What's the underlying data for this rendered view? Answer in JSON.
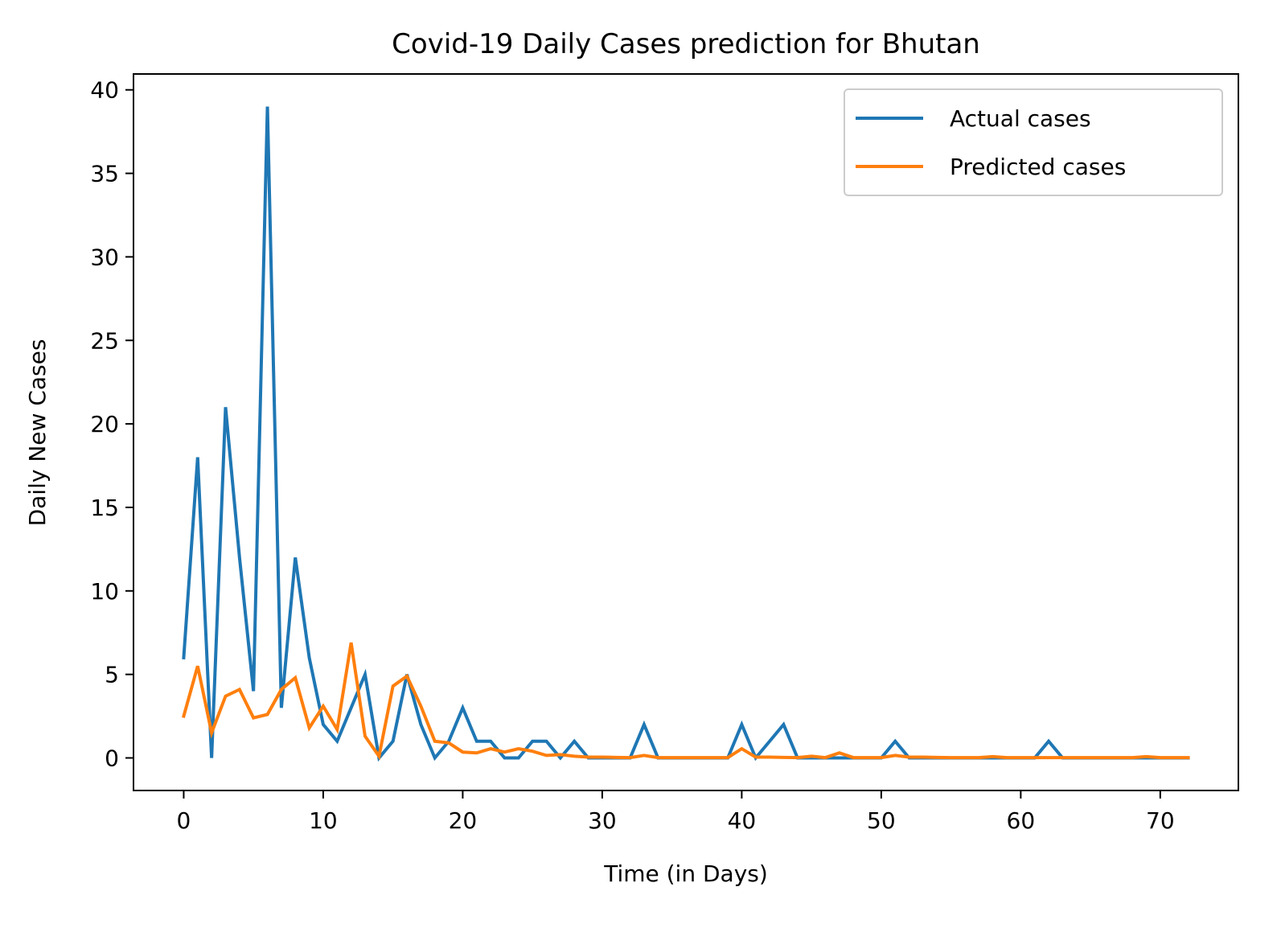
{
  "chart_data": {
    "type": "line",
    "title": "Covid-19 Daily Cases prediction for Bhutan",
    "xlabel": "Time (in Days)",
    "ylabel": "Daily New Cases",
    "xlim": [
      -3.6,
      75.6
    ],
    "ylim": [
      -1.95,
      40.95
    ],
    "x_ticks": [
      0,
      10,
      20,
      30,
      40,
      50,
      60,
      70
    ],
    "y_ticks": [
      0,
      5,
      10,
      15,
      20,
      25,
      30,
      35,
      40
    ],
    "grid": false,
    "legend_position": "top-right",
    "series": [
      {
        "name": "Actual cases",
        "color": "#1f77b4",
        "values": [
          6,
          18,
          0,
          21,
          12,
          4,
          39,
          3,
          12,
          6,
          2,
          1,
          3,
          5,
          0,
          1,
          5,
          2,
          0,
          1,
          3,
          1,
          1,
          0,
          0,
          1,
          1,
          0,
          1,
          0,
          0,
          0,
          0,
          2,
          0,
          0,
          0,
          0,
          0,
          0,
          2,
          0,
          1,
          2,
          0,
          0,
          0,
          0,
          0,
          0,
          0,
          1,
          0,
          0,
          0,
          0,
          0,
          0,
          0,
          0,
          0,
          0,
          1,
          0,
          0,
          0,
          0,
          0,
          0,
          0,
          0,
          0,
          0
        ]
      },
      {
        "name": "Predicted cases",
        "color": "#ff7f0e",
        "values": [
          2.5,
          5.5,
          1.5,
          3.7,
          4.1,
          2.4,
          2.6,
          4.1,
          4.8,
          1.8,
          3.1,
          1.7,
          6.9,
          1.3,
          0.1,
          4.3,
          4.9,
          3.1,
          1.0,
          0.9,
          0.35,
          0.3,
          0.55,
          0.35,
          0.55,
          0.4,
          0.15,
          0.2,
          0.1,
          0.05,
          0.05,
          0.03,
          0.02,
          0.15,
          0.02,
          0.02,
          0.02,
          0.02,
          0.02,
          0.02,
          0.55,
          0.05,
          0.05,
          0.03,
          0.02,
          0.1,
          0.02,
          0.3,
          0.02,
          0.02,
          0.02,
          0.15,
          0.05,
          0.05,
          0.03,
          0.02,
          0.02,
          0.02,
          0.08,
          0.02,
          0.02,
          0.02,
          0.02,
          0.02,
          0.02,
          0.02,
          0.02,
          0.02,
          0.02,
          0.08,
          0.02,
          0.02,
          0.02
        ]
      }
    ]
  }
}
